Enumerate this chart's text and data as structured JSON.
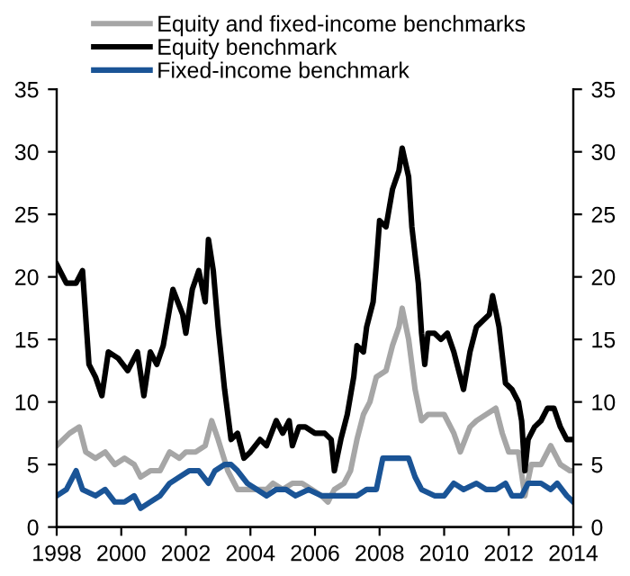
{
  "chart_data": {
    "type": "line",
    "series": [
      {
        "name": "Equity and fixed-income benchmarks",
        "color": "#a6a6a6",
        "x": [
          1998.0,
          1998.4,
          1998.7,
          1998.9,
          1999.2,
          1999.5,
          1999.8,
          2000.1,
          2000.4,
          2000.6,
          2000.9,
          2001.2,
          2001.5,
          2001.8,
          2002.0,
          2002.3,
          2002.6,
          2002.8,
          2003.0,
          2003.3,
          2003.6,
          2003.9,
          2004.2,
          2004.5,
          2004.7,
          2005.0,
          2005.3,
          2005.6,
          2005.9,
          2006.2,
          2006.4,
          2006.6,
          2006.9,
          2007.1,
          2007.3,
          2007.5,
          2007.7,
          2007.9,
          2008.2,
          2008.4,
          2008.6,
          2008.7,
          2008.9,
          2009.1,
          2009.3,
          2009.5,
          2009.7,
          2010.0,
          2010.3,
          2010.5,
          2010.8,
          2011.0,
          2011.3,
          2011.6,
          2011.8,
          2012.0,
          2012.3,
          2012.5,
          2012.7,
          2013.0,
          2013.3,
          2013.6,
          2013.9,
          2014.0
        ],
        "values": [
          6.5,
          7.5,
          8,
          6,
          5.5,
          6,
          5,
          5.5,
          5,
          4,
          4.5,
          4.5,
          6,
          5.5,
          6,
          6,
          6.5,
          8.5,
          7,
          4.5,
          3,
          3,
          3,
          3,
          3.5,
          3,
          3.5,
          3.5,
          3,
          2.5,
          2,
          3,
          3.5,
          4.5,
          7,
          9,
          10,
          12,
          12.5,
          14.5,
          16,
          17.5,
          15,
          11,
          8.5,
          9,
          9,
          9,
          7.5,
          6,
          8,
          8.5,
          9,
          9.5,
          7.5,
          6,
          6,
          2.5,
          5,
          5,
          6.5,
          5,
          4.5,
          4.5
        ]
      },
      {
        "name": "Equity benchmark",
        "color": "#000000",
        "x": [
          1998.0,
          1998.3,
          1998.6,
          1998.8,
          1999.0,
          1999.2,
          1999.4,
          1999.6,
          1999.9,
          2000.2,
          2000.5,
          2000.7,
          2000.9,
          2001.1,
          2001.3,
          2001.6,
          2001.9,
          2002.0,
          2002.2,
          2002.4,
          2002.6,
          2002.7,
          2002.85,
          2003.0,
          2003.2,
          2003.4,
          2003.6,
          2003.8,
          2004.0,
          2004.3,
          2004.5,
          2004.8,
          2005.0,
          2005.2,
          2005.3,
          2005.5,
          2005.7,
          2006.0,
          2006.3,
          2006.5,
          2006.6,
          2006.8,
          2007.0,
          2007.2,
          2007.3,
          2007.5,
          2007.6,
          2007.8,
          2007.9,
          2008.0,
          2008.2,
          2008.4,
          2008.6,
          2008.7,
          2008.9,
          2009.0,
          2009.2,
          2009.3,
          2009.4,
          2009.5,
          2009.7,
          2009.9,
          2010.1,
          2010.3,
          2010.5,
          2010.6,
          2010.8,
          2011.0,
          2011.2,
          2011.4,
          2011.5,
          2011.7,
          2011.9,
          2012.1,
          2012.3,
          2012.4,
          2012.5,
          2012.6,
          2012.8,
          2013.0,
          2013.2,
          2013.4,
          2013.6,
          2013.8,
          2014.0
        ],
        "values": [
          21,
          19.5,
          19.5,
          20.5,
          13,
          12,
          10.5,
          14,
          13.5,
          12.5,
          14,
          10.5,
          14,
          13,
          14.5,
          19,
          17,
          15.5,
          19,
          20.5,
          18,
          23,
          20.5,
          16,
          11,
          7,
          7.5,
          5.5,
          6,
          7,
          6.5,
          8.5,
          7.5,
          8.5,
          6.5,
          8,
          8,
          7.5,
          7.5,
          7,
          4.5,
          7,
          9,
          12,
          14.5,
          14,
          16,
          18,
          21,
          24.5,
          24,
          27,
          28.5,
          30.3,
          28,
          24,
          19.5,
          15.5,
          13,
          15.5,
          15.5,
          15,
          15.5,
          14,
          12,
          11,
          14,
          16,
          16.5,
          17,
          18.5,
          16,
          11.5,
          11,
          10,
          8.5,
          4.5,
          7,
          8,
          8.5,
          9.5,
          9.5,
          8,
          7,
          7
        ]
      },
      {
        "name": "Fixed-income benchmark",
        "color": "#1a5496",
        "x": [
          1998.0,
          1998.3,
          1998.6,
          1998.8,
          1999.2,
          1999.5,
          1999.8,
          2000.1,
          2000.4,
          2000.6,
          2000.9,
          2001.2,
          2001.5,
          2001.8,
          2002.1,
          2002.4,
          2002.7,
          2002.9,
          2003.2,
          2003.4,
          2003.6,
          2003.9,
          2004.2,
          2004.5,
          2004.8,
          2005.1,
          2005.4,
          2005.8,
          2006.2,
          2006.6,
          2007.0,
          2007.3,
          2007.6,
          2007.9,
          2008.1,
          2008.5,
          2008.9,
          2009.1,
          2009.3,
          2009.7,
          2010.0,
          2010.3,
          2010.6,
          2011.0,
          2011.3,
          2011.6,
          2011.9,
          2012.1,
          2012.4,
          2012.6,
          2013.0,
          2013.3,
          2013.5,
          2013.8,
          2014.0
        ],
        "values": [
          2.5,
          3,
          4.5,
          3,
          2.5,
          3,
          2,
          2,
          2.5,
          1.5,
          2,
          2.5,
          3.5,
          4,
          4.5,
          4.5,
          3.5,
          4.5,
          5,
          5,
          4.5,
          3.5,
          3,
          2.5,
          3,
          3,
          2.5,
          3,
          2.5,
          2.5,
          2.5,
          2.5,
          3,
          3,
          5.5,
          5.5,
          5.5,
          4,
          3,
          2.5,
          2.5,
          3.5,
          3,
          3.5,
          3,
          3,
          3.5,
          2.5,
          2.5,
          3.5,
          3.5,
          3,
          3.5,
          2.5,
          2
        ]
      }
    ],
    "xlim": [
      1998,
      2014
    ],
    "xticks": [
      1998,
      2000,
      2002,
      2004,
      2006,
      2008,
      2010,
      2012,
      2014
    ],
    "ylim": [
      0,
      35
    ],
    "yticks": [
      0,
      5,
      10,
      15,
      20,
      25,
      30,
      35
    ],
    "y2lim": [
      0,
      35
    ],
    "y2ticks": [
      0,
      5,
      10,
      15,
      20,
      25,
      30,
      35
    ],
    "grid": false,
    "legend": "top left",
    "marker": "none",
    "line_style": "solid"
  }
}
